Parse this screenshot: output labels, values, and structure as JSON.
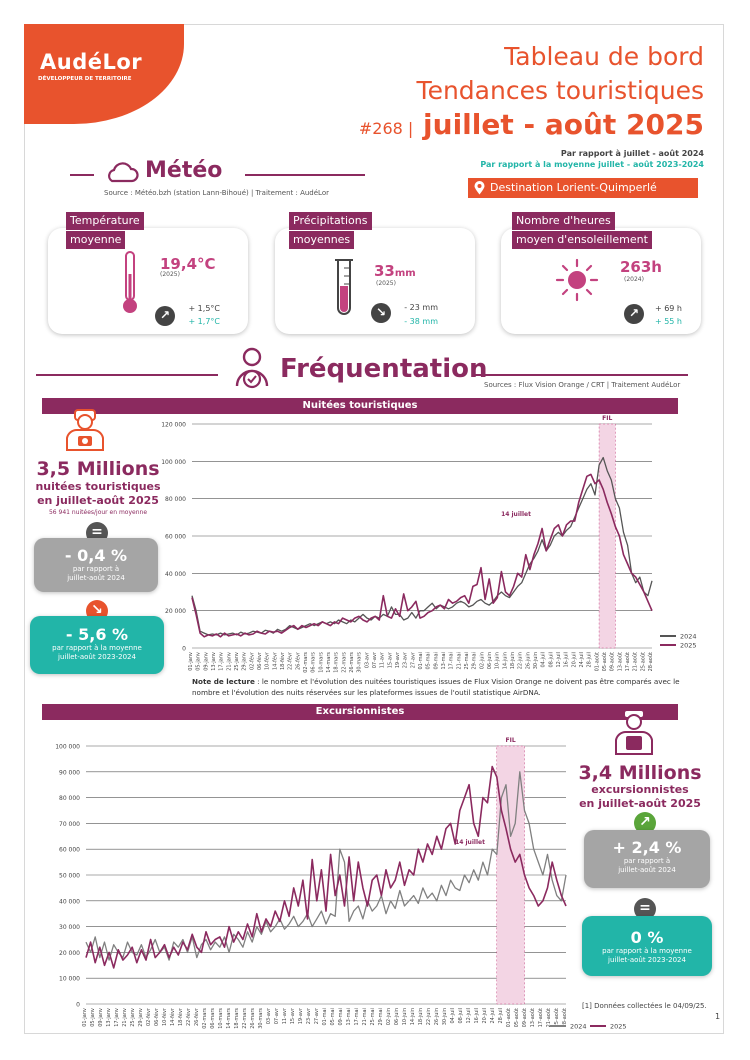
{
  "brand": {
    "logo": "AudéLor",
    "tagline": "DÉVELOPPEUR DE TERRITOIRE"
  },
  "header": {
    "line1": "Tableau de bord",
    "line2": "Tendances touristiques",
    "issue": "#268 |",
    "period": "juillet - août 2025",
    "compare1": "Par rapport à juillet - août  2024",
    "compare2": "Par rapport à la moyenne juillet - août 2023-2024"
  },
  "meteo": {
    "title": "Météo",
    "source": "Source : Météo.bzh (station Lann-Bihoué) | Traitement : AudéLor",
    "destination": "Destination Lorient-Quimperlé",
    "cards": [
      {
        "label1": "Température",
        "label2": "moyenne",
        "value": "19,4°C",
        "year": "(2025)",
        "cmp1": "+ 1,5°C",
        "cmp2": "+ 1,7°C",
        "icon": "thermometer-icon"
      },
      {
        "label1": "Précipitations",
        "label2": "moyennes",
        "value": "33",
        "unit": "mm",
        "year": "(2025)",
        "cmp1": "- 23 mm",
        "cmp2": "- 38 mm",
        "icon": "rain-gauge-icon"
      },
      {
        "label1": "Nombre d'heures",
        "label2": "moyen d'ensoleillement",
        "value": "263h",
        "year": "(2024)",
        "cmp1": "+ 69 h",
        "cmp2": "+ 55 h",
        "icon": "sun-icon"
      }
    ]
  },
  "frequentation": {
    "title": "Fréquentation",
    "source": "Sources : Flux Vision Orange / CRT | Traitement AudéLor"
  },
  "nuitees": {
    "bar_title": "Nuitées touristiques",
    "big": "3,5 Millions",
    "sub1": "nuitées touristiques",
    "sub2": "en juillet-août 2025",
    "small": "56 941 nuitées/jour en moyenne",
    "box1": {
      "big": "- 0,4 %",
      "l1": "par rapport à",
      "l2": "juillet-août 2024"
    },
    "box2": {
      "big": "- 5,6 %",
      "l1": "par rapport à la moyenne",
      "l2": "juillet-août 2023-2024"
    },
    "note_bold": "Note de lecture",
    "note": " : le nombre et l'évolution des nuitées touristiques issues de Flux Vision Orange ne doivent pas être comparés avec le nombre et l'évolution des nuits réservées sur les plateformes issues de l'outil statistique AirDNA."
  },
  "excursionnistes": {
    "bar_title": "Excursionnistes",
    "big": "3,4 Millions",
    "sub1": "excursionnistes",
    "sub2": "en juillet-août 2025",
    "box1": {
      "big": "+ 2,4 %",
      "l1": "par rapport à",
      "l2": "juillet-août 2024"
    },
    "box2": {
      "big": "0 %",
      "l1": "par rapport à la moyenne",
      "l2": "juillet-août 2023-2024"
    }
  },
  "footnote": "[1] Données collectées le 04/09/25.",
  "page_number": "1",
  "colors": {
    "orange": "#e8532d",
    "purple": "#8b2a5f",
    "teal": "#22b5a8",
    "pink": "#c3427f",
    "grey": "#a5a5a5"
  },
  "chart_data": [
    {
      "type": "line",
      "title": "Nuitées touristiques",
      "ylim": [
        0,
        120000
      ],
      "yticks": [
        "0",
        "20 000",
        "40 000",
        "60 000",
        "80 000",
        "100 000",
        "120 000"
      ],
      "xticks": [
        "01-janv",
        "05-janv",
        "09-janv",
        "13-janv",
        "17-janv",
        "21-janv",
        "25-janv",
        "29-janv",
        "02-févr",
        "06-févr",
        "10-févr",
        "14-févr",
        "18-févr",
        "22-févr",
        "26-févr",
        "02-mars",
        "06-mars",
        "10-mars",
        "14-mars",
        "18-mars",
        "22-mars",
        "26-mars",
        "30-mars",
        "03-avr",
        "07-avr",
        "11-avr",
        "15-avr",
        "19-avr",
        "23-avr",
        "27-avr",
        "01-mai",
        "05-mai",
        "09-mai",
        "13-mai",
        "17-mai",
        "21-mai",
        "25-mai",
        "29-mai",
        "02-juin",
        "06-juin",
        "10-juin",
        "14-juin",
        "18-juin",
        "22-juin",
        "26-juin",
        "30-juin",
        "04-juil",
        "08-juil",
        "12-juil",
        "16-juil",
        "20-juil",
        "24-juil",
        "28-juil",
        "01-août",
        "05-août",
        "09-août",
        "13-août",
        "17-août",
        "21-août",
        "25-août",
        "28-août"
      ],
      "annotations": [
        "FIL",
        "14 juillet"
      ],
      "legend": "bottom-right",
      "series": [
        {
          "name": "2024",
          "color": "#555555",
          "values": [
            28000,
            20000,
            9000,
            8000,
            7000,
            7500,
            7000,
            8000,
            7000,
            7500,
            8000,
            7000,
            8500,
            7500,
            8000,
            9000,
            8500,
            8000,
            9500,
            9000,
            8000,
            10000,
            9000,
            10000,
            12000,
            11000,
            10000,
            11000,
            12000,
            13000,
            12000,
            13000,
            14000,
            13000,
            14000,
            13000,
            15000,
            14000,
            13000,
            15000,
            14000,
            16000,
            18000,
            16000,
            15000,
            17000,
            16000,
            18000,
            17000,
            22000,
            18000,
            18000,
            15000,
            16000,
            19000,
            16000,
            20000,
            20000,
            22000,
            24000,
            21000,
            23000,
            22000,
            21000,
            22000,
            24000,
            25000,
            24000,
            22000,
            23000,
            25000,
            26000,
            24000,
            23000,
            25000,
            28000,
            30000,
            28000,
            27000,
            30000,
            33000,
            35000,
            40000,
            45000,
            48000,
            52000,
            58000,
            52000,
            55000,
            60000,
            62000,
            60000,
            63000,
            65000,
            70000,
            75000,
            80000,
            85000,
            88000,
            82000,
            98000,
            102000,
            95000,
            90000,
            80000,
            75000,
            62000,
            55000,
            40000,
            35000,
            38000,
            30000,
            28000,
            36000
          ]
        },
        {
          "name": "2025",
          "color": "#8b2a5f",
          "values": [
            27000,
            18000,
            8000,
            6000,
            7000,
            6500,
            7500,
            6000,
            8000,
            6500,
            7000,
            7500,
            6500,
            8000,
            7000,
            7500,
            9000,
            8000,
            7500,
            9000,
            8500,
            9000,
            8000,
            9500,
            11000,
            12000,
            10000,
            12000,
            11000,
            12000,
            13000,
            12000,
            14000,
            13000,
            12000,
            14000,
            13000,
            16000,
            15000,
            14000,
            16000,
            17000,
            15000,
            14000,
            16000,
            17000,
            15000,
            28000,
            17000,
            16000,
            21000,
            17000,
            29000,
            20000,
            22000,
            25000,
            16000,
            17000,
            19000,
            20000,
            22000,
            23000,
            21000,
            26000,
            24000,
            25000,
            27000,
            28000,
            24000,
            33000,
            34000,
            43000,
            26000,
            37000,
            24000,
            27000,
            41000,
            30000,
            28000,
            33000,
            40000,
            38000,
            50000,
            42000,
            50000,
            56000,
            64000,
            52000,
            58000,
            64000,
            66000,
            60000,
            66000,
            68000,
            68000,
            78000,
            85000,
            92000,
            93000,
            88000,
            90000,
            85000,
            78000,
            72000,
            65000,
            60000,
            50000,
            45000,
            40000,
            38000,
            34000,
            30000,
            25000,
            20000
          ]
        }
      ]
    },
    {
      "type": "line",
      "title": "Excursionnistes",
      "ylim": [
        0,
        100000
      ],
      "yticks": [
        "0",
        "10 000",
        "20 000",
        "30 000",
        "40 000",
        "50 000",
        "60 000",
        "70 000",
        "80 000",
        "90 000",
        "100 000"
      ],
      "xticks": [
        "01-janv",
        "05-janv",
        "09-janv",
        "13-janv",
        "17-janv",
        "21-janv",
        "25-janv",
        "29-janv",
        "02-févr",
        "06-févr",
        "10-févr",
        "14-févr",
        "18-févr",
        "22-févr",
        "26-févr",
        "02-mars",
        "06-mars",
        "10-mars",
        "14-mars",
        "18-mars",
        "22-mars",
        "26-mars",
        "30-mars",
        "03-avr",
        "07-avr",
        "11-avr",
        "15-avr",
        "19-avr",
        "23-avr",
        "27-avr",
        "01-mai",
        "05-mai",
        "09-mai",
        "13-mai",
        "17-mai",
        "21-mai",
        "25-mai",
        "29-mai",
        "02-juin",
        "06-juin",
        "10-juin",
        "14-juin",
        "18-juin",
        "22-juin",
        "26-juin",
        "30-juin",
        "04-juil",
        "08-juil",
        "12-juil",
        "16-juil",
        "20-juil",
        "24-juil",
        "28-juil",
        "01-août",
        "05-août",
        "09-août",
        "13-août",
        "17-août",
        "21-août",
        "25-août",
        "28-août"
      ],
      "annotations": [
        "FIL",
        "14 juillet"
      ],
      "legend": "bottom-center",
      "series": [
        {
          "name": "2024",
          "color": "#808080",
          "values": [
            24000,
            20000,
            26000,
            18000,
            24000,
            17000,
            23000,
            20000,
            18000,
            24000,
            20000,
            19000,
            23000,
            18000,
            21000,
            25000,
            20000,
            22000,
            17000,
            24000,
            22000,
            25000,
            20000,
            26000,
            18000,
            23000,
            25000,
            21000,
            24000,
            22000,
            26000,
            20000,
            27000,
            25000,
            22000,
            28000,
            24000,
            30000,
            27000,
            32000,
            28000,
            30000,
            33000,
            29000,
            31000,
            34000,
            30000,
            32000,
            35000,
            30000,
            33000,
            36000,
            31000,
            35000,
            34000,
            60000,
            55000,
            32000,
            36000,
            38000,
            33000,
            40000,
            36000,
            38000,
            42000,
            35000,
            40000,
            37000,
            44000,
            38000,
            40000,
            42000,
            39000,
            45000,
            41000,
            43000,
            40000,
            46000,
            42000,
            48000,
            45000,
            44000,
            50000,
            47000,
            52000,
            48000,
            55000,
            50000,
            60000,
            58000,
            80000,
            85000,
            65000,
            70000,
            90000,
            75000,
            70000,
            60000,
            55000,
            50000,
            58000,
            48000,
            42000,
            40000,
            50000
          ]
        },
        {
          "name": "2025",
          "color": "#8b2a5f",
          "values": [
            18000,
            24000,
            16000,
            22000,
            15000,
            20000,
            14000,
            21000,
            17000,
            19000,
            22000,
            16000,
            21000,
            17000,
            25000,
            18000,
            20000,
            23000,
            18000,
            22000,
            19000,
            24000,
            21000,
            27000,
            22000,
            20000,
            28000,
            23000,
            25000,
            26000,
            22000,
            30000,
            24000,
            28000,
            25000,
            31000,
            26000,
            35000,
            28000,
            33000,
            30000,
            36000,
            32000,
            40000,
            34000,
            45000,
            38000,
            48000,
            33000,
            56000,
            40000,
            52000,
            36000,
            58000,
            42000,
            50000,
            38000,
            57000,
            40000,
            55000,
            45000,
            38000,
            48000,
            50000,
            42000,
            52000,
            45000,
            48000,
            55000,
            46000,
            52000,
            50000,
            60000,
            55000,
            62000,
            58000,
            65000,
            60000,
            68000,
            70000,
            62000,
            75000,
            80000,
            85000,
            70000,
            65000,
            80000,
            78000,
            92000,
            88000,
            75000,
            68000,
            60000,
            55000,
            58000,
            50000,
            45000,
            42000,
            38000,
            40000,
            45000,
            55000,
            48000,
            42000,
            38000
          ]
        }
      ]
    }
  ]
}
